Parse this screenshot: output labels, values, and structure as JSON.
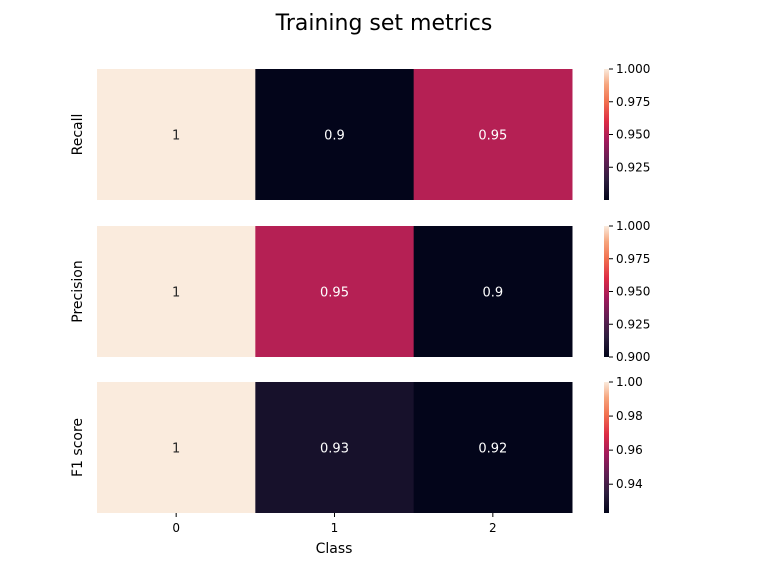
{
  "chart_data": {
    "type": "heatmap",
    "title": "Training set metrics",
    "xlabel": "Class",
    "categories": [
      "0",
      "1",
      "2"
    ],
    "colormap": "rocket",
    "panels": [
      {
        "name": "Recall",
        "values": [
          1.0,
          0.9,
          0.95
        ],
        "labels": [
          "1",
          "0.9",
          "0.95"
        ],
        "colorbar": {
          "min": 0.9,
          "max": 1.0,
          "ticks": [
            1.0,
            0.975,
            0.95,
            0.925
          ],
          "tick_labels": [
            "1.000",
            "0.975",
            "0.950",
            "0.925"
          ]
        }
      },
      {
        "name": "Precision",
        "values": [
          1.0,
          0.95,
          0.9
        ],
        "labels": [
          "1",
          "0.95",
          "0.9"
        ],
        "colorbar": {
          "min": 0.9,
          "max": 1.0,
          "ticks": [
            1.0,
            0.975,
            0.95,
            0.925,
            0.9
          ],
          "tick_labels": [
            "1.000",
            "0.975",
            "0.950",
            "0.925",
            "0.900"
          ]
        }
      },
      {
        "name": "F1 score",
        "values": [
          1.0,
          0.9286,
          0.9231
        ],
        "labels": [
          "1",
          "0.93",
          "0.92"
        ],
        "colorbar": {
          "min": 0.9231,
          "max": 1.0,
          "ticks": [
            1.0,
            0.98,
            0.96,
            0.94
          ],
          "tick_labels": [
            "1.00",
            "0.98",
            "0.96",
            "0.94"
          ]
        }
      }
    ]
  }
}
